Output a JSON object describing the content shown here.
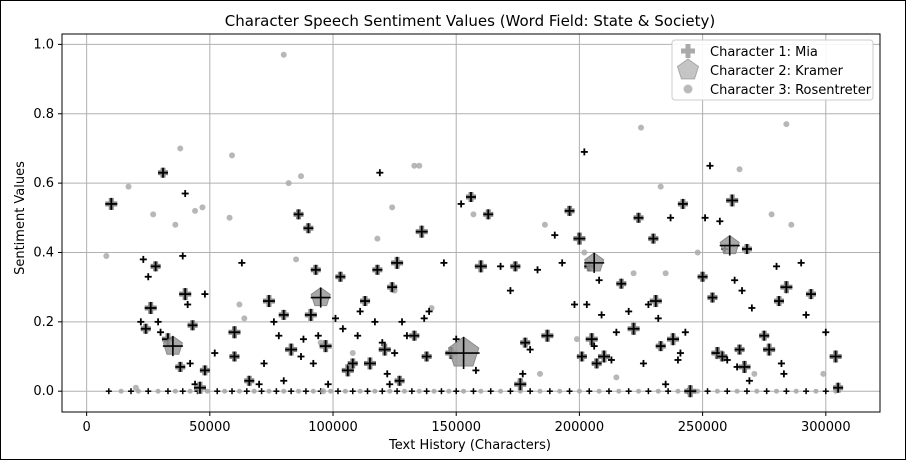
{
  "chart_data": {
    "type": "scatter",
    "title": "Character Speech Sentiment Values (Word Field: State & Society)",
    "xlabel": "Text History (Characters)",
    "ylabel": "Sentiment Values",
    "xlim": [
      -10000,
      322000
    ],
    "ylim": [
      -0.06,
      1.03
    ],
    "xticks": [
      0,
      50000,
      100000,
      150000,
      200000,
      250000,
      300000
    ],
    "xtick_labels": [
      "0",
      "50000",
      "100000",
      "150000",
      "200000",
      "250000",
      "300000"
    ],
    "yticks": [
      0.0,
      0.2,
      0.4,
      0.6,
      0.8,
      1.0
    ],
    "ytick_labels": [
      "0.0",
      "0.2",
      "0.4",
      "0.6",
      "0.8",
      "1.0"
    ],
    "grid": true,
    "legend_position": "top-right",
    "colors": {
      "mia": "#000000",
      "kramer": "#999999",
      "rosentreter": "#aaaaaa",
      "grid": "#b0b0b0"
    },
    "series": [
      {
        "name": "Character 1: Mia",
        "marker": "plus",
        "points": [
          [
            10000,
            0.54
          ],
          [
            22000,
            0.2
          ],
          [
            23000,
            0.38
          ],
          [
            24000,
            0.18
          ],
          [
            25000,
            0.33
          ],
          [
            26000,
            0.24
          ],
          [
            28000,
            0.36
          ],
          [
            29000,
            0.2
          ],
          [
            30000,
            0.17
          ],
          [
            31000,
            0.63
          ],
          [
            33000,
            0.15
          ],
          [
            35000,
            0.13
          ],
          [
            38000,
            0.07
          ],
          [
            39000,
            0.39
          ],
          [
            40000,
            0.57
          ],
          [
            40000,
            0.28
          ],
          [
            41000,
            0.25
          ],
          [
            42000,
            0.08
          ],
          [
            43000,
            0.19
          ],
          [
            44000,
            0.02
          ],
          [
            46000,
            0.01
          ],
          [
            48000,
            0.06
          ],
          [
            48000,
            0.28
          ],
          [
            52000,
            0.11
          ],
          [
            60000,
            0.1
          ],
          [
            60000,
            0.17
          ],
          [
            63000,
            0.37
          ],
          [
            66000,
            0.03
          ],
          [
            70000,
            0.02
          ],
          [
            72000,
            0.08
          ],
          [
            74000,
            0.26
          ],
          [
            76000,
            0.2
          ],
          [
            78000,
            0.16
          ],
          [
            80000,
            0.22
          ],
          [
            80000,
            0.03
          ],
          [
            83000,
            0.12
          ],
          [
            86000,
            0.51
          ],
          [
            87000,
            0.1
          ],
          [
            88000,
            0.15
          ],
          [
            90000,
            0.47
          ],
          [
            91000,
            0.22
          ],
          [
            92000,
            0.08
          ],
          [
            93000,
            0.35
          ],
          [
            94000,
            0.16
          ],
          [
            95000,
            0.27
          ],
          [
            97000,
            0.13
          ],
          [
            98000,
            0.02
          ],
          [
            101000,
            0.21
          ],
          [
            103000,
            0.33
          ],
          [
            104000,
            0.18
          ],
          [
            106000,
            0.06
          ],
          [
            108000,
            0.08
          ],
          [
            110000,
            0.16
          ],
          [
            111000,
            0.23
          ],
          [
            113000,
            0.26
          ],
          [
            115000,
            0.08
          ],
          [
            117000,
            0.2
          ],
          [
            118000,
            0.35
          ],
          [
            119000,
            0.63
          ],
          [
            120000,
            0.14
          ],
          [
            121000,
            0.12
          ],
          [
            122000,
            0.05
          ],
          [
            123000,
            0.02
          ],
          [
            124000,
            0.3
          ],
          [
            125000,
            0.11
          ],
          [
            126000,
            0.37
          ],
          [
            127000,
            0.03
          ],
          [
            128000,
            0.2
          ],
          [
            130000,
            0.16
          ],
          [
            133000,
            0.16
          ],
          [
            136000,
            0.46
          ],
          [
            137000,
            0.21
          ],
          [
            138000,
            0.1
          ],
          [
            139000,
            0.23
          ],
          [
            145000,
            0.37
          ],
          [
            148000,
            0.11
          ],
          [
            150000,
            0.15
          ],
          [
            152000,
            0.54
          ],
          [
            156000,
            0.56
          ],
          [
            158000,
            0.06
          ],
          [
            160000,
            0.36
          ],
          [
            163000,
            0.51
          ],
          [
            168000,
            0.36
          ],
          [
            172000,
            0.29
          ],
          [
            174000,
            0.36
          ],
          [
            176000,
            0.02
          ],
          [
            177000,
            0.05
          ],
          [
            178000,
            0.14
          ],
          [
            180000,
            0.12
          ],
          [
            183000,
            0.35
          ],
          [
            187000,
            0.16
          ],
          [
            190000,
            0.45
          ],
          [
            193000,
            0.37
          ],
          [
            196000,
            0.52
          ],
          [
            198000,
            0.25
          ],
          [
            200000,
            0.44
          ],
          [
            201000,
            0.1
          ],
          [
            202000,
            0.69
          ],
          [
            203000,
            0.25
          ],
          [
            204000,
            0.36
          ],
          [
            205000,
            0.15
          ],
          [
            206000,
            0.13
          ],
          [
            207000,
            0.08
          ],
          [
            208000,
            0.32
          ],
          [
            209000,
            0.22
          ],
          [
            210000,
            0.1
          ],
          [
            213000,
            0.09
          ],
          [
            215000,
            0.17
          ],
          [
            217000,
            0.31
          ],
          [
            220000,
            0.23
          ],
          [
            222000,
            0.18
          ],
          [
            224000,
            0.5
          ],
          [
            226000,
            0.08
          ],
          [
            228000,
            0.25
          ],
          [
            230000,
            0.44
          ],
          [
            231000,
            0.26
          ],
          [
            232000,
            0.21
          ],
          [
            233000,
            0.13
          ],
          [
            235000,
            0.02
          ],
          [
            237000,
            0.5
          ],
          [
            238000,
            0.15
          ],
          [
            240000,
            0.09
          ],
          [
            241000,
            0.11
          ],
          [
            242000,
            0.54
          ],
          [
            243000,
            0.17
          ],
          [
            245000,
            0.0
          ],
          [
            250000,
            0.33
          ],
          [
            251000,
            0.5
          ],
          [
            253000,
            0.65
          ],
          [
            254000,
            0.27
          ],
          [
            256000,
            0.11
          ],
          [
            257000,
            0.49
          ],
          [
            258000,
            0.1
          ],
          [
            259000,
            0.41
          ],
          [
            260000,
            0.09
          ],
          [
            262000,
            0.55
          ],
          [
            263000,
            0.32
          ],
          [
            264000,
            0.07
          ],
          [
            265000,
            0.12
          ],
          [
            266000,
            0.29
          ],
          [
            267000,
            0.07
          ],
          [
            268000,
            0.41
          ],
          [
            269000,
            0.03
          ],
          [
            270000,
            0.24
          ],
          [
            275000,
            0.16
          ],
          [
            277000,
            0.12
          ],
          [
            280000,
            0.36
          ],
          [
            281000,
            0.26
          ],
          [
            282000,
            0.08
          ],
          [
            283000,
            0.05
          ],
          [
            284000,
            0.3
          ],
          [
            290000,
            0.37
          ],
          [
            292000,
            0.22
          ],
          [
            294000,
            0.28
          ],
          [
            300000,
            0.17
          ],
          [
            304000,
            0.1
          ],
          [
            305000,
            0.01
          ]
        ]
      },
      {
        "name": "Character 2: Kramer",
        "marker": "pentagon",
        "points": [
          [
            35000,
            0.13
          ],
          [
            153000,
            0.11
          ],
          [
            206000,
            0.37
          ],
          [
            261000,
            0.42
          ],
          [
            95000,
            0.27
          ]
        ]
      },
      {
        "name": "Character 3: Rosentreter",
        "marker": "circle",
        "points": [
          [
            8000,
            0.39
          ],
          [
            17000,
            0.59
          ],
          [
            20000,
            0.01
          ],
          [
            27000,
            0.51
          ],
          [
            36000,
            0.48
          ],
          [
            38000,
            0.7
          ],
          [
            44000,
            0.52
          ],
          [
            47000,
            0.53
          ],
          [
            58000,
            0.5
          ],
          [
            59000,
            0.68
          ],
          [
            62000,
            0.25
          ],
          [
            64000,
            0.21
          ],
          [
            80000,
            0.97
          ],
          [
            82000,
            0.6
          ],
          [
            85000,
            0.38
          ],
          [
            87000,
            0.62
          ],
          [
            95000,
            0.14
          ],
          [
            96000,
            0.0
          ],
          [
            108000,
            0.11
          ],
          [
            118000,
            0.44
          ],
          [
            124000,
            0.53
          ],
          [
            125000,
            0.29
          ],
          [
            127000,
            0.37
          ],
          [
            133000,
            0.65
          ],
          [
            135000,
            0.65
          ],
          [
            140000,
            0.24
          ],
          [
            157000,
            0.51
          ],
          [
            176000,
            0.03
          ],
          [
            184000,
            0.05
          ],
          [
            186000,
            0.48
          ],
          [
            199000,
            0.15
          ],
          [
            202000,
            0.4
          ],
          [
            215000,
            0.04
          ],
          [
            222000,
            0.34
          ],
          [
            225000,
            0.76
          ],
          [
            233000,
            0.59
          ],
          [
            235000,
            0.34
          ],
          [
            248000,
            0.4
          ],
          [
            265000,
            0.64
          ],
          [
            271000,
            0.05
          ],
          [
            278000,
            0.51
          ],
          [
            284000,
            0.77
          ],
          [
            286000,
            0.48
          ],
          [
            299000,
            0.05
          ]
        ]
      }
    ],
    "baseline_points": {
      "series": "mixed",
      "y": 0.0,
      "x_values": [
        9000,
        14000,
        18000,
        21000,
        25000,
        29000,
        33000,
        36000,
        39000,
        42000,
        45000,
        49000,
        53000,
        56000,
        59000,
        62000,
        65000,
        68000,
        71000,
        74000,
        77000,
        80000,
        83000,
        86000,
        89000,
        92000,
        95000,
        99000,
        102000,
        105000,
        108000,
        111000,
        114000,
        117000,
        120000,
        123000,
        126000,
        129000,
        132000,
        135000,
        138000,
        141000,
        144000,
        147000,
        150000,
        153000,
        157000,
        160000,
        164000,
        168000,
        172000,
        176000,
        180000,
        184000,
        188000,
        192000,
        196000,
        200000,
        204000,
        208000,
        212000,
        216000,
        220000,
        224000,
        228000,
        232000,
        236000,
        240000,
        244000,
        248000,
        252000,
        256000,
        260000,
        264000,
        268000,
        272000,
        276000,
        280000,
        284000,
        288000,
        292000,
        296000,
        300000,
        304000
      ]
    }
  }
}
